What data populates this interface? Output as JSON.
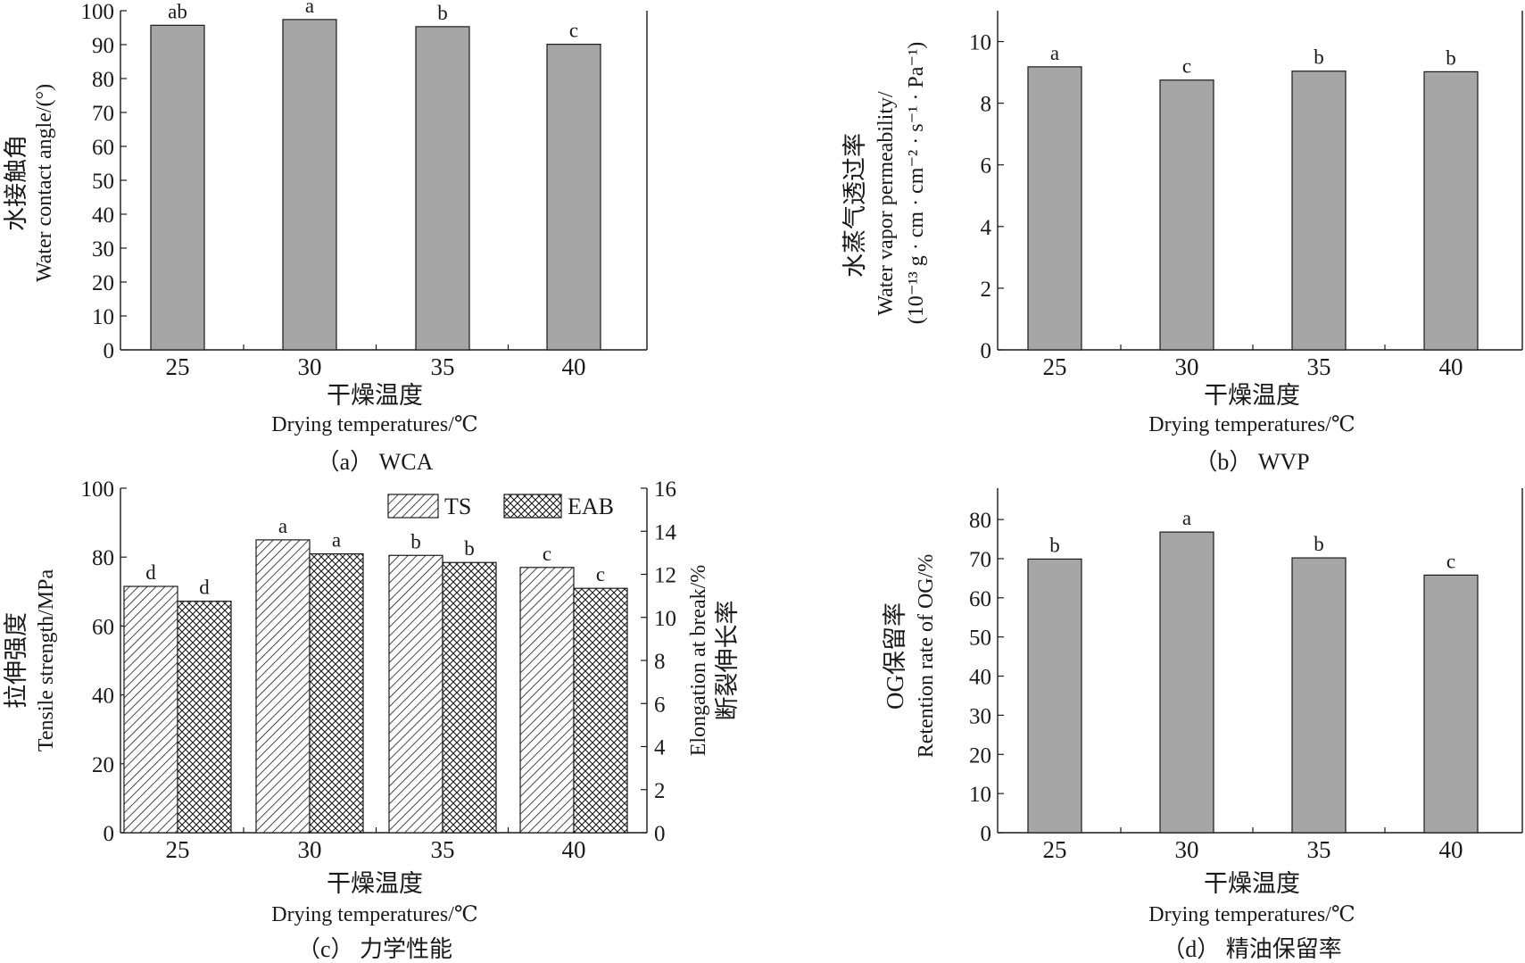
{
  "chart_data": [
    {
      "id": "a",
      "type": "bar",
      "categories": [
        "25",
        "30",
        "35",
        "40"
      ],
      "values": [
        95.7,
        97.4,
        95.3,
        90.1
      ],
      "significance": [
        "ab",
        "a",
        "b",
        "c"
      ],
      "ylim": [
        0,
        100
      ],
      "yticks": [
        0,
        10,
        20,
        30,
        40,
        50,
        60,
        70,
        80,
        90,
        100
      ],
      "ylabel_cn": "水接触角",
      "ylabel_en": "Water contact angle/(°)",
      "xlabel_cn": "干燥温度",
      "xlabel_en": "Drying temperatures/℃",
      "caption": "（a） WCA",
      "bar_color": "#a6a6a6"
    },
    {
      "id": "b",
      "type": "bar",
      "categories": [
        "25",
        "30",
        "35",
        "40"
      ],
      "values": [
        9.18,
        8.75,
        9.04,
        9.02
      ],
      "significance": [
        "a",
        "c",
        "b",
        "b"
      ],
      "ylim": [
        0,
        11
      ],
      "yticks": [
        0,
        2,
        4,
        6,
        8,
        10
      ],
      "ylabel_cn": "水蒸气透过率",
      "ylabel_en": "Water vapor permeability/",
      "ylabel_unit": "(10⁻¹³ g · cm · cm⁻² · s⁻¹ · Pa⁻¹)",
      "xlabel_cn": "干燥温度",
      "xlabel_en": "Drying temperatures/℃",
      "caption": "（b） WVP",
      "bar_color": "#a6a6a6"
    },
    {
      "id": "c",
      "type": "bar",
      "categories": [
        "25",
        "30",
        "35",
        "40"
      ],
      "series": [
        {
          "name": "TS",
          "axis": "left",
          "values": [
            71.5,
            85.0,
            80.5,
            77.0
          ],
          "significance": [
            "d",
            "a",
            "b",
            "c"
          ]
        },
        {
          "name": "EAB",
          "axis": "right",
          "values": [
            10.75,
            12.95,
            12.55,
            11.35
          ],
          "significance": [
            "d",
            "a",
            "b",
            "c"
          ]
        }
      ],
      "ylim": [
        0,
        100
      ],
      "yticks": [
        0,
        20,
        40,
        60,
        80,
        100
      ],
      "y2lim": [
        0,
        16
      ],
      "y2ticks": [
        0,
        2,
        4,
        6,
        8,
        10,
        12,
        14,
        16
      ],
      "ylabel_cn": "拉伸强度",
      "ylabel_en": "Tensile strength/MPa",
      "y2label_en": "Elongation at break/%",
      "y2label_cn": "断裂伸长率",
      "xlabel_cn": "干燥温度",
      "xlabel_en": "Drying temperatures/℃",
      "caption": "（c） 力学性能",
      "legend": [
        "TS",
        "EAB"
      ],
      "legend_position": "top-right"
    },
    {
      "id": "d",
      "type": "bar",
      "categories": [
        "25",
        "30",
        "35",
        "40"
      ],
      "values": [
        69.9,
        76.8,
        70.2,
        65.8
      ],
      "significance": [
        "b",
        "a",
        "b",
        "c"
      ],
      "ylim": [
        0,
        88
      ],
      "yticks": [
        0,
        10,
        20,
        30,
        40,
        50,
        60,
        70,
        80
      ],
      "ylabel_cn": "OG保留率",
      "ylabel_en": "Retention rate of OG/%",
      "xlabel_cn": "干燥温度",
      "xlabel_en": "Drying temperatures/℃",
      "caption": "（d） 精油保留率",
      "bar_color": "#a6a6a6"
    }
  ]
}
